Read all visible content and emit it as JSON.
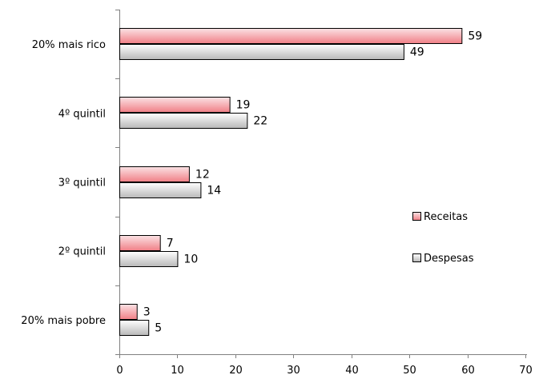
{
  "chart_data": {
    "type": "bar",
    "orientation": "horizontal",
    "categories": [
      "20% mais rico",
      "4º quintil",
      "3º quintil",
      "2º quintil",
      "20% mais pobre"
    ],
    "series": [
      {
        "name": "Receitas",
        "values": [
          59,
          19,
          12,
          7,
          3
        ],
        "color": "#f07f86",
        "color_light": "#fbe3e5"
      },
      {
        "name": "Despesas",
        "values": [
          49,
          22,
          14,
          10,
          5
        ],
        "color": "#b8b8b8",
        "color_light": "#ffffff"
      }
    ],
    "data_labels": {
      "Receitas": [
        "59",
        "19",
        "12",
        "7",
        "3"
      ],
      "Despesas": [
        "49",
        "22",
        "14",
        "10",
        "5"
      ]
    },
    "xlim": [
      0,
      70
    ],
    "x_ticks": [
      0,
      10,
      20,
      30,
      40,
      50,
      60,
      70
    ],
    "x_tick_labels": [
      "0",
      "10",
      "20",
      "30",
      "40",
      "50",
      "60",
      "70"
    ],
    "grid": false,
    "legend_position": "right"
  }
}
